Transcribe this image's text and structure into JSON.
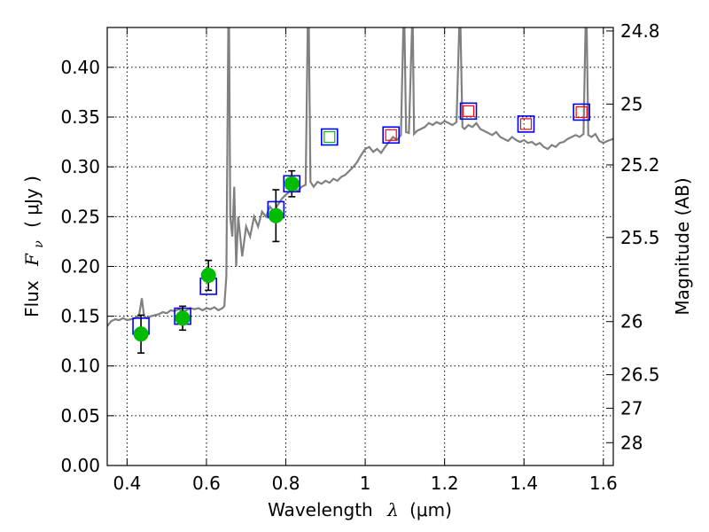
{
  "chart_data": {
    "type": "scatter",
    "xlabel_text": "Wavelength",
    "xlabel_symbol": "λ",
    "xlabel_unit": "(μm)",
    "ylabel_text": "Flux",
    "ylabel_symbol": "F",
    "ylabel_subscript": "ν",
    "ylabel_unit": "( μJy )",
    "y2label": "Magnitude (AB)",
    "xlim": [
      0.35,
      1.625
    ],
    "ylim": [
      0.0,
      0.44
    ],
    "x_ticks": [
      0.4,
      0.6,
      0.8,
      1.0,
      1.2,
      1.4,
      1.6
    ],
    "x_tick_labels": [
      "0.4",
      "0.6",
      "0.8",
      "1",
      "1.2",
      "1.4",
      "1.6"
    ],
    "y_ticks": [
      0.0,
      0.05,
      0.1,
      0.15,
      0.2,
      0.25,
      0.3,
      0.35,
      0.4
    ],
    "y_tick_labels": [
      "0.00",
      "0.05",
      "0.10",
      "0.15",
      "0.20",
      "0.25",
      "0.30",
      "0.35",
      "0.40"
    ],
    "y2_ticks": [
      24.8,
      25.0,
      25.2,
      25.5,
      26.0,
      26.5,
      27.0,
      28.0
    ],
    "y2_tick_labels": [
      "24.8",
      "25",
      "25.2",
      "25.5",
      "26",
      "26.5",
      "27",
      "28"
    ],
    "grid": true,
    "colors": {
      "model": "#808080",
      "observed": "#00bb00",
      "model_box": "#0000ff",
      "predicted_red": "#ff0000",
      "predicted_green": "#00bb00",
      "errorbar": "#000000"
    },
    "model_spectrum": [
      [
        0.35,
        0.14
      ],
      [
        0.36,
        0.145
      ],
      [
        0.37,
        0.147
      ],
      [
        0.38,
        0.146
      ],
      [
        0.39,
        0.148
      ],
      [
        0.4,
        0.146
      ],
      [
        0.41,
        0.147
      ],
      [
        0.42,
        0.148
      ],
      [
        0.43,
        0.15
      ],
      [
        0.437,
        0.168
      ],
      [
        0.443,
        0.15
      ],
      [
        0.45,
        0.148
      ],
      [
        0.46,
        0.15
      ],
      [
        0.47,
        0.151
      ],
      [
        0.48,
        0.152
      ],
      [
        0.49,
        0.154
      ],
      [
        0.5,
        0.153
      ],
      [
        0.51,
        0.156
      ],
      [
        0.52,
        0.155
      ],
      [
        0.53,
        0.157
      ],
      [
        0.54,
        0.155
      ],
      [
        0.55,
        0.156
      ],
      [
        0.56,
        0.158
      ],
      [
        0.57,
        0.157
      ],
      [
        0.58,
        0.158
      ],
      [
        0.59,
        0.156
      ],
      [
        0.6,
        0.158
      ],
      [
        0.61,
        0.157
      ],
      [
        0.62,
        0.159
      ],
      [
        0.63,
        0.156
      ],
      [
        0.64,
        0.158
      ],
      [
        0.645,
        0.16
      ],
      [
        0.65,
        0.19
      ],
      [
        0.655,
        0.44
      ],
      [
        0.657,
        0.44
      ],
      [
        0.66,
        0.25
      ],
      [
        0.665,
        0.23
      ],
      [
        0.67,
        0.28
      ],
      [
        0.675,
        0.2
      ],
      [
        0.68,
        0.25
      ],
      [
        0.69,
        0.21
      ],
      [
        0.7,
        0.24
      ],
      [
        0.71,
        0.23
      ],
      [
        0.72,
        0.25
      ],
      [
        0.73,
        0.24
      ],
      [
        0.74,
        0.255
      ],
      [
        0.75,
        0.25
      ],
      [
        0.76,
        0.26
      ],
      [
        0.77,
        0.255
      ],
      [
        0.78,
        0.262
      ],
      [
        0.79,
        0.268
      ],
      [
        0.8,
        0.272
      ],
      [
        0.81,
        0.275
      ],
      [
        0.82,
        0.278
      ],
      [
        0.83,
        0.276
      ],
      [
        0.84,
        0.28
      ],
      [
        0.85,
        0.282
      ],
      [
        0.855,
        0.44
      ],
      [
        0.858,
        0.44
      ],
      [
        0.862,
        0.285
      ],
      [
        0.87,
        0.28
      ],
      [
        0.88,
        0.285
      ],
      [
        0.89,
        0.283
      ],
      [
        0.9,
        0.286
      ],
      [
        0.91,
        0.284
      ],
      [
        0.92,
        0.288
      ],
      [
        0.93,
        0.286
      ],
      [
        0.94,
        0.29
      ],
      [
        0.95,
        0.292
      ],
      [
        0.96,
        0.296
      ],
      [
        0.97,
        0.3
      ],
      [
        0.98,
        0.305
      ],
      [
        0.99,
        0.312
      ],
      [
        1.0,
        0.318
      ],
      [
        1.01,
        0.32
      ],
      [
        1.02,
        0.315
      ],
      [
        1.03,
        0.318
      ],
      [
        1.04,
        0.314
      ],
      [
        1.05,
        0.32
      ],
      [
        1.06,
        0.325
      ],
      [
        1.07,
        0.33
      ],
      [
        1.08,
        0.327
      ],
      [
        1.09,
        0.332
      ],
      [
        1.096,
        0.44
      ],
      [
        1.099,
        0.44
      ],
      [
        1.103,
        0.335
      ],
      [
        1.11,
        0.334
      ],
      [
        1.118,
        0.44
      ],
      [
        1.12,
        0.44
      ],
      [
        1.123,
        0.333
      ],
      [
        1.13,
        0.336
      ],
      [
        1.14,
        0.338
      ],
      [
        1.15,
        0.34
      ],
      [
        1.16,
        0.344
      ],
      [
        1.17,
        0.342
      ],
      [
        1.18,
        0.345
      ],
      [
        1.19,
        0.343
      ],
      [
        1.2,
        0.346
      ],
      [
        1.21,
        0.344
      ],
      [
        1.22,
        0.342
      ],
      [
        1.23,
        0.345
      ],
      [
        1.237,
        0.44
      ],
      [
        1.24,
        0.44
      ],
      [
        1.245,
        0.34
      ],
      [
        1.25,
        0.338
      ],
      [
        1.26,
        0.342
      ],
      [
        1.27,
        0.34
      ],
      [
        1.28,
        0.344
      ],
      [
        1.29,
        0.338
      ],
      [
        1.3,
        0.336
      ],
      [
        1.31,
        0.334
      ],
      [
        1.32,
        0.332
      ],
      [
        1.33,
        0.335
      ],
      [
        1.34,
        0.33
      ],
      [
        1.35,
        0.328
      ],
      [
        1.36,
        0.326
      ],
      [
        1.37,
        0.33
      ],
      [
        1.38,
        0.327
      ],
      [
        1.39,
        0.325
      ],
      [
        1.4,
        0.327
      ],
      [
        1.41,
        0.324
      ],
      [
        1.42,
        0.325
      ],
      [
        1.43,
        0.322
      ],
      [
        1.44,
        0.324
      ],
      [
        1.45,
        0.32
      ],
      [
        1.46,
        0.318
      ],
      [
        1.47,
        0.322
      ],
      [
        1.48,
        0.32
      ],
      [
        1.49,
        0.324
      ],
      [
        1.5,
        0.325
      ],
      [
        1.51,
        0.328
      ],
      [
        1.52,
        0.33
      ],
      [
        1.53,
        0.332
      ],
      [
        1.54,
        0.33
      ],
      [
        1.55,
        0.333
      ],
      [
        1.555,
        0.44
      ],
      [
        1.558,
        0.44
      ],
      [
        1.562,
        0.332
      ],
      [
        1.57,
        0.33
      ],
      [
        1.58,
        0.333
      ],
      [
        1.59,
        0.326
      ],
      [
        1.6,
        0.324
      ],
      [
        1.61,
        0.326
      ],
      [
        1.625,
        0.328
      ]
    ],
    "model_photometry": [
      {
        "x": 0.435,
        "y": 0.14
      },
      {
        "x": 0.54,
        "y": 0.15
      },
      {
        "x": 0.605,
        "y": 0.18
      },
      {
        "x": 0.775,
        "y": 0.257
      },
      {
        "x": 0.815,
        "y": 0.283
      },
      {
        "x": 0.91,
        "y": 0.33
      },
      {
        "x": 1.065,
        "y": 0.332
      },
      {
        "x": 1.26,
        "y": 0.356
      },
      {
        "x": 1.405,
        "y": 0.343
      },
      {
        "x": 1.545,
        "y": 0.355
      }
    ],
    "predicted_markers": [
      {
        "x": 0.91,
        "y": 0.33,
        "color": "#00bb00"
      },
      {
        "x": 1.065,
        "y": 0.332,
        "color": "#ff0000"
      },
      {
        "x": 1.26,
        "y": 0.356,
        "color": "#ff0000"
      },
      {
        "x": 1.405,
        "y": 0.343,
        "color": "#ff0000"
      },
      {
        "x": 1.545,
        "y": 0.355,
        "color": "#ff0000"
      }
    ],
    "observed": [
      {
        "x": 0.435,
        "y": 0.132,
        "err": 0.019
      },
      {
        "x": 0.54,
        "y": 0.148,
        "err": 0.012
      },
      {
        "x": 0.605,
        "y": 0.191,
        "err": 0.015
      },
      {
        "x": 0.775,
        "y": 0.251,
        "err": 0.026
      },
      {
        "x": 0.815,
        "y": 0.283,
        "err": 0.013
      }
    ]
  }
}
